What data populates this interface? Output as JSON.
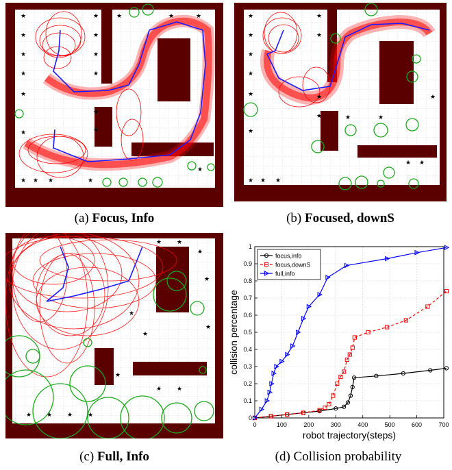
{
  "captions": {
    "a": {
      "tag": "(a)",
      "bold": "Focus, Info",
      "plain": ""
    },
    "b": {
      "tag": "(b)",
      "bold": "Focused, downS",
      "plain": ""
    },
    "c": {
      "tag": "(c)",
      "bold": "Full, Info",
      "plain": ""
    },
    "d": {
      "tag": "(d)",
      "bold": "",
      "plain": "Collision probability"
    }
  },
  "colors": {
    "wall": "#5a0000",
    "ellipse": "#ff0000",
    "trajectory": "#1a1aff",
    "landmark_circle": "#1aa81a",
    "grid": "#9a9a9a"
  },
  "chart_data": {
    "type": "line",
    "xlabel": "robot trajectory(steps)",
    "ylabel": "collision percentage",
    "xlim": [
      0,
      700
    ],
    "ylim": [
      0,
      1
    ],
    "x_ticks": [
      "0",
      "100",
      "200",
      "300",
      "400",
      "500",
      "600",
      "700"
    ],
    "y_ticks": [
      "0",
      "0.1",
      "0.2",
      "0.3",
      "0.4",
      "0.5",
      "0.6",
      "0.7",
      "0.8",
      "0.9",
      "1"
    ],
    "legend_position": "top-left",
    "series": [
      {
        "name": "focus,info",
        "color": "#000000",
        "dash": "solid",
        "marker": "circle",
        "x": [
          0,
          60,
          120,
          180,
          240,
          300,
          330,
          345,
          355,
          362,
          368,
          450,
          550,
          650,
          710
        ],
        "y": [
          0,
          0.01,
          0.02,
          0.03,
          0.04,
          0.055,
          0.065,
          0.09,
          0.13,
          0.18,
          0.235,
          0.245,
          0.26,
          0.278,
          0.29
        ]
      },
      {
        "name": "focus,downS",
        "color": "#ff0000",
        "dash": "dashed",
        "marker": "square",
        "x": [
          0,
          60,
          120,
          180,
          240,
          260,
          275,
          290,
          305,
          318,
          330,
          342,
          352,
          362,
          370,
          420,
          490,
          560,
          640,
          710
        ],
        "y": [
          0,
          0.01,
          0.02,
          0.03,
          0.045,
          0.06,
          0.08,
          0.13,
          0.2,
          0.24,
          0.27,
          0.34,
          0.37,
          0.41,
          0.47,
          0.5,
          0.53,
          0.57,
          0.65,
          0.74
        ]
      },
      {
        "name": "full,info",
        "color": "#0000ff",
        "dash": "solid",
        "marker": "triangle-right",
        "x": [
          0,
          25,
          45,
          55,
          62,
          70,
          80,
          100,
          120,
          140,
          160,
          180,
          200,
          240,
          270,
          340,
          490,
          600,
          710
        ],
        "y": [
          0,
          0.05,
          0.1,
          0.15,
          0.2,
          0.26,
          0.3,
          0.33,
          0.37,
          0.42,
          0.5,
          0.58,
          0.65,
          0.72,
          0.82,
          0.89,
          0.93,
          0.965,
          0.995
        ]
      }
    ]
  }
}
